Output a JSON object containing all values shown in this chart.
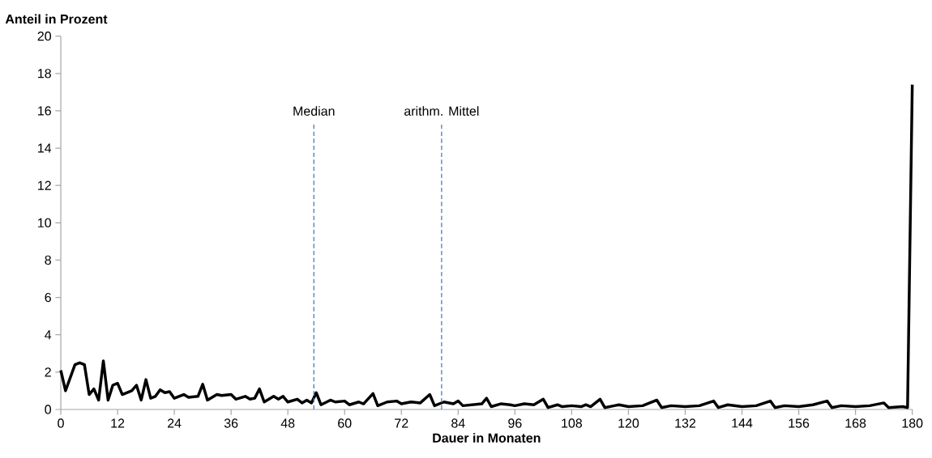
{
  "chart_data": {
    "type": "line",
    "xlabel": "Dauer in Monaten",
    "ylabel": "Anteil in Prozent",
    "x": [
      0,
      1,
      3,
      4,
      5,
      6,
      7,
      8,
      9,
      10,
      11,
      12,
      13,
      15,
      16,
      17,
      18,
      19,
      20,
      21,
      22,
      23,
      24,
      26,
      27,
      29,
      30,
      31,
      33,
      34,
      36,
      37,
      39,
      40,
      41,
      42,
      43,
      45,
      46,
      47,
      48,
      50,
      51,
      52,
      53,
      54,
      55,
      57,
      58,
      60,
      61,
      63,
      64,
      66,
      67,
      69,
      71,
      72,
      74,
      76,
      78,
      79,
      81,
      83,
      84,
      85,
      87,
      89,
      90,
      91,
      93,
      95,
      96,
      98,
      100,
      102,
      103,
      105,
      106,
      108,
      110,
      111,
      112,
      114,
      115,
      117,
      118,
      120,
      123,
      126,
      127,
      129,
      132,
      135,
      138,
      139,
      141,
      144,
      147,
      150,
      151,
      153,
      156,
      159,
      162,
      163,
      165,
      168,
      171,
      174,
      175,
      178,
      179,
      180
    ],
    "series": [
      {
        "color": "#000000",
        "values": [
          2.1,
          1.0,
          2.4,
          2.5,
          2.4,
          0.8,
          1.1,
          0.5,
          2.6,
          0.5,
          1.3,
          1.4,
          0.8,
          1.0,
          1.3,
          0.5,
          1.6,
          0.6,
          0.7,
          1.05,
          0.9,
          0.95,
          0.6,
          0.8,
          0.65,
          0.7,
          1.35,
          0.5,
          0.8,
          0.75,
          0.8,
          0.55,
          0.7,
          0.55,
          0.6,
          1.1,
          0.4,
          0.7,
          0.55,
          0.7,
          0.4,
          0.55,
          0.35,
          0.5,
          0.35,
          0.9,
          0.25,
          0.5,
          0.4,
          0.45,
          0.25,
          0.4,
          0.3,
          0.85,
          0.2,
          0.4,
          0.45,
          0.3,
          0.4,
          0.35,
          0.8,
          0.2,
          0.4,
          0.3,
          0.45,
          0.2,
          0.25,
          0.3,
          0.6,
          0.15,
          0.3,
          0.25,
          0.2,
          0.3,
          0.25,
          0.55,
          0.1,
          0.25,
          0.15,
          0.2,
          0.15,
          0.25,
          0.15,
          0.55,
          0.1,
          0.2,
          0.25,
          0.15,
          0.2,
          0.5,
          0.1,
          0.2,
          0.15,
          0.2,
          0.45,
          0.1,
          0.25,
          0.15,
          0.2,
          0.45,
          0.1,
          0.2,
          0.15,
          0.25,
          0.45,
          0.1,
          0.2,
          0.15,
          0.2,
          0.35,
          0.1,
          0.15,
          0.1,
          17.4
        ]
      }
    ],
    "xlim": [
      0,
      180
    ],
    "xticks": [
      0,
      12,
      24,
      36,
      48,
      60,
      72,
      84,
      96,
      108,
      120,
      132,
      144,
      156,
      168,
      180
    ],
    "ylim": [
      0,
      20
    ],
    "yticks": [
      0,
      2,
      4,
      6,
      8,
      10,
      12,
      14,
      16,
      18,
      20
    ],
    "grid": false,
    "marker": "none",
    "line_style": "solid",
    "ref_lines": [
      {
        "axis": "x",
        "value": 53.5,
        "label": "Median",
        "color": "#4f81bd",
        "line_style": "dashed"
      },
      {
        "axis": "x",
        "value": 80.5,
        "label": "arithm. Mittel",
        "color": "#4f81bd",
        "line_style": "dashed"
      }
    ]
  }
}
